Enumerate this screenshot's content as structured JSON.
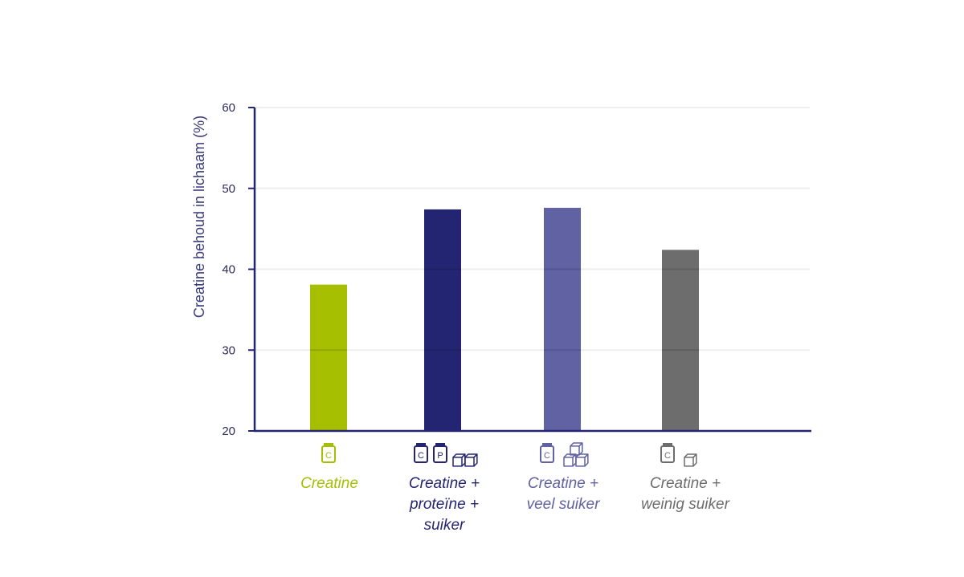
{
  "chart_data": {
    "type": "bar",
    "title": "",
    "xlabel": "",
    "ylabel": "Creatine behoud in lichaam (%)",
    "ylim": [
      20,
      60
    ],
    "yticks": [
      20,
      30,
      40,
      50,
      60
    ],
    "grid": true,
    "categories": [
      {
        "label_lines": [
          "Creatine"
        ],
        "color": "#a6bf00",
        "icons": [
          "creatine-jar-icon"
        ]
      },
      {
        "label_lines": [
          "Creatine +",
          "proteïne +",
          "suiker"
        ],
        "color": "#242572",
        "icons": [
          "creatine-jar-icon",
          "protein-jar-icon",
          "sugar-cubes-icon"
        ]
      },
      {
        "label_lines": [
          "Creatine +",
          "veel suiker"
        ],
        "color": "#6062a3",
        "icons": [
          "creatine-jar-icon",
          "sugar-cubes-stack-icon"
        ]
      },
      {
        "label_lines": [
          "Creatine +",
          "weinig suiker"
        ],
        "color": "#6d6d6d",
        "icons": [
          "creatine-jar-icon",
          "sugar-cube-icon"
        ]
      }
    ],
    "values": [
      38.1,
      47.4,
      47.6,
      42.4
    ],
    "axis_color": "#242572",
    "grid_color": "#eeeeee"
  }
}
